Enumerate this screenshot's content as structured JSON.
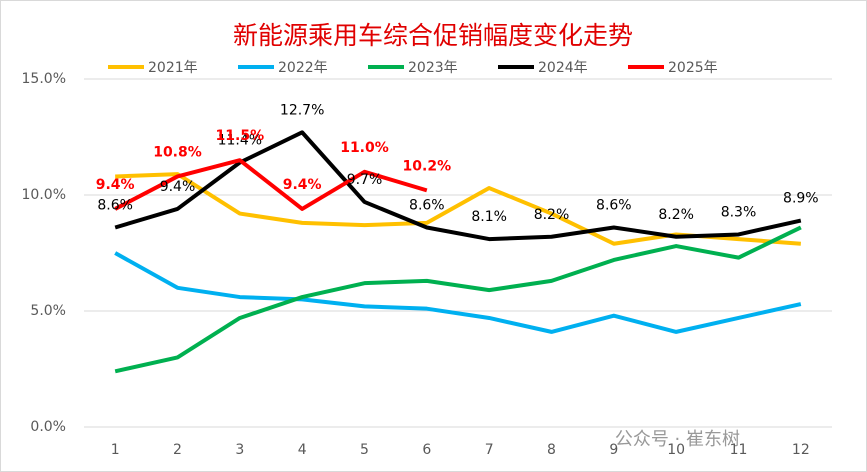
{
  "chart_data": {
    "type": "line",
    "title": "新能源乘用车综合促销幅度变化走势",
    "categories": [
      "1",
      "2",
      "3",
      "4",
      "5",
      "6",
      "7",
      "8",
      "9",
      "10",
      "11",
      "12"
    ],
    "ylim": [
      0,
      15
    ],
    "yticks": [
      {
        "value": 0,
        "label": "0.0%"
      },
      {
        "value": 5,
        "label": "5.0%"
      },
      {
        "value": 10,
        "label": "10.0%"
      },
      {
        "value": 15,
        "label": "15.0%"
      }
    ],
    "grid": true,
    "legend": "top",
    "series": [
      {
        "name": "2021年",
        "color": "#ffc000",
        "values": [
          10.8,
          10.9,
          9.2,
          8.8,
          8.7,
          8.8,
          10.3,
          9.2,
          7.9,
          8.3,
          8.1,
          7.9
        ]
      },
      {
        "name": "2022年",
        "color": "#00b0f0",
        "values": [
          7.5,
          6.0,
          5.6,
          5.5,
          5.2,
          5.1,
          4.7,
          4.1,
          4.8,
          4.1,
          4.7,
          5.3
        ]
      },
      {
        "name": "2023年",
        "color": "#00b050",
        "values": [
          2.4,
          3.0,
          4.7,
          5.6,
          6.2,
          6.3,
          5.9,
          6.3,
          7.2,
          7.8,
          7.3,
          8.6
        ]
      },
      {
        "name": "2024年",
        "color": "#000000",
        "values": [
          8.6,
          9.4,
          11.4,
          12.7,
          9.7,
          8.6,
          8.1,
          8.2,
          8.6,
          8.2,
          8.3,
          8.9
        ],
        "value_labels": [
          "8.6%",
          "9.4%",
          "11.4%",
          "12.7%",
          "9.7%",
          "8.6%",
          "8.1%",
          "8.2%",
          "8.6%",
          "8.2%",
          "8.3%",
          "8.9%"
        ]
      },
      {
        "name": "2025年",
        "color": "#ff0000",
        "values": [
          9.4,
          10.8,
          11.5,
          9.4,
          11.0,
          10.2,
          null,
          null,
          null,
          null,
          null,
          null
        ],
        "value_labels": [
          "9.4%",
          "10.8%",
          "11.5%",
          "9.4%",
          "11.0%",
          "10.2%",
          null,
          null,
          null,
          null,
          null,
          null
        ]
      }
    ],
    "watermark": "公众号 · 崔东树"
  }
}
